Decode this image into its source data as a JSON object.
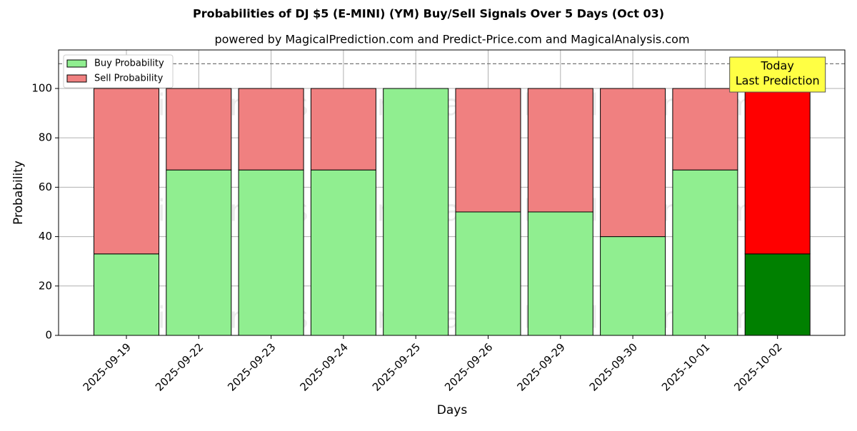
{
  "chart_data": {
    "type": "stacked_bar",
    "title": "Probabilities of DJ $5 (E-MINI) (YM) Buy/Sell Signals Over 5 Days (Oct 03)",
    "subtitle": "powered by MagicalPrediction.com and Predict-Price.com and MagicalAnalysis.com",
    "x_label": "Days",
    "y_label": "Probability",
    "categories": [
      "2025-09-19",
      "2025-09-22",
      "2025-09-23",
      "2025-09-24",
      "2025-09-25",
      "2025-09-26",
      "2025-09-29",
      "2025-09-30",
      "2025-10-01",
      "2025-10-02"
    ],
    "series": [
      {
        "name": "Buy Probability",
        "color": "#90ee90",
        "colors": [
          "#90ee90",
          "#90ee90",
          "#90ee90",
          "#90ee90",
          "#90ee90",
          "#90ee90",
          "#90ee90",
          "#90ee90",
          "#90ee90",
          "#008000"
        ],
        "values": [
          33,
          67,
          67,
          67,
          100,
          50,
          50,
          40,
          67,
          33
        ]
      },
      {
        "name": "Sell Probability",
        "color": "#f08080",
        "colors": [
          "#f08080",
          "#f08080",
          "#f08080",
          "#f08080",
          "#f08080",
          "#f08080",
          "#f08080",
          "#f08080",
          "#f08080",
          "#ff0000"
        ],
        "values": [
          67,
          33,
          33,
          33,
          0,
          50,
          50,
          60,
          33,
          67
        ]
      }
    ],
    "ylim": [
      0,
      115.6
    ],
    "yticks": [
      0,
      20,
      40,
      60,
      80,
      100
    ],
    "grid": true,
    "reference_line": 110,
    "annotation": [
      "Today",
      "Last Prediction"
    ],
    "watermarks": [
      "MagicalAnalysis.com",
      "MagicalPrediction.com"
    ],
    "legend": "upper left"
  }
}
